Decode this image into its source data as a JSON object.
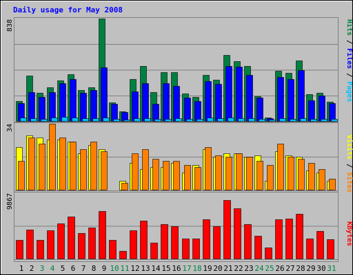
{
  "title": "Daily usage for May 2008",
  "colors": {
    "background": "#c0c0c0",
    "title": "#0000ff",
    "hits": "#008040",
    "files": "#0000ff",
    "pages": "#00c0ff",
    "visits": "#ffff00",
    "sites": "#ff8000",
    "kbytes": "#ff0000",
    "weekend_day": "#008040",
    "weekday": "#000000"
  },
  "labels": {
    "pages": "Pages",
    "files": "Files",
    "hits": "Hits",
    "sites": "Sites",
    "visits": "Visits",
    "kbytes": "KBytes",
    "sep": " / "
  },
  "chart_data": {
    "type": "bar",
    "title": "Daily usage for May 2008",
    "categories": [
      "1",
      "2",
      "3",
      "4",
      "5",
      "6",
      "7",
      "8",
      "9",
      "10",
      "11",
      "12",
      "13",
      "14",
      "15",
      "16",
      "17",
      "18",
      "19",
      "20",
      "21",
      "22",
      "23",
      "24",
      "25",
      "26",
      "27",
      "28",
      "29",
      "30",
      "31"
    ],
    "weekend_days": [
      3,
      4,
      10,
      11,
      17,
      18,
      24,
      25,
      31
    ],
    "panels": [
      {
        "name": "hits-files-pages",
        "ymax": 838,
        "ymax_label": "838",
        "series": [
          {
            "name": "Hits",
            "color": "#008040",
            "values": [
              170,
              372,
              232,
              280,
              337,
              386,
              259,
              280,
              838,
              156,
              84,
              349,
              455,
              243,
              403,
              401,
              230,
              199,
              380,
              338,
              544,
              490,
              451,
              205,
              32,
              413,
              397,
              499,
              222,
              233,
              162
            ]
          },
          {
            "name": "Files",
            "color": "#0000ff",
            "values": [
              149,
              239,
              203,
              240,
              312,
              347,
              232,
              255,
              440,
              143,
              77,
              245,
              312,
              143,
              312,
              290,
              195,
              168,
              328,
              306,
              451,
              448,
              382,
              197,
              30,
              365,
              348,
              418,
              171,
              215,
              153
            ]
          },
          {
            "name": "Pages",
            "color": "#00c0ff",
            "values": [
              33,
              30,
              25,
              33,
              38,
              33,
              27,
              30,
              33,
              20,
              15,
              28,
              28,
              22,
              25,
              28,
              22,
              22,
              33,
              30,
              33,
              30,
              28,
              22,
              15,
              28,
              22,
              28,
              22,
              22,
              22
            ]
          }
        ]
      },
      {
        "name": "visits-sites",
        "ymax": 34,
        "ymax_label": "34",
        "series": [
          {
            "name": "Visits",
            "color": "#ffff00",
            "values": [
              22,
              28,
              27,
              26,
              26,
              25,
              19,
              23,
              21,
              0,
              5,
              14,
              11,
              12,
              12,
              14,
              9,
              13,
              21,
              17,
              19,
              19,
              17,
              18,
              5,
              20,
              18,
              17,
              10,
              9,
              5
            ]
          },
          {
            "name": "Sites",
            "color": "#ff8000",
            "values": [
              15,
              27,
              24,
              34,
              27,
              25,
              21,
              25,
              20,
              0,
              4,
              19,
              21,
              16,
              15,
              15,
              13,
              12,
              22,
              18,
              17,
              19,
              17,
              15,
              13,
              24,
              17,
              16,
              14,
              11,
              6
            ]
          }
        ]
      },
      {
        "name": "kbytes",
        "ymax": 9867,
        "ymax_label": "9867",
        "series": [
          {
            "name": "KBytes",
            "color": "#ff0000",
            "values": [
              2905,
              4380,
              2860,
              4310,
              5330,
              6360,
              3900,
              4760,
              7240,
              2830,
              1280,
              4350,
              5770,
              2460,
              5270,
              4890,
              3120,
              3100,
              5920,
              4970,
              8860,
              7590,
              5280,
              3470,
              1720,
              5970,
              6060,
              6790,
              3110,
              4200,
              3010
            ]
          }
        ]
      }
    ]
  }
}
